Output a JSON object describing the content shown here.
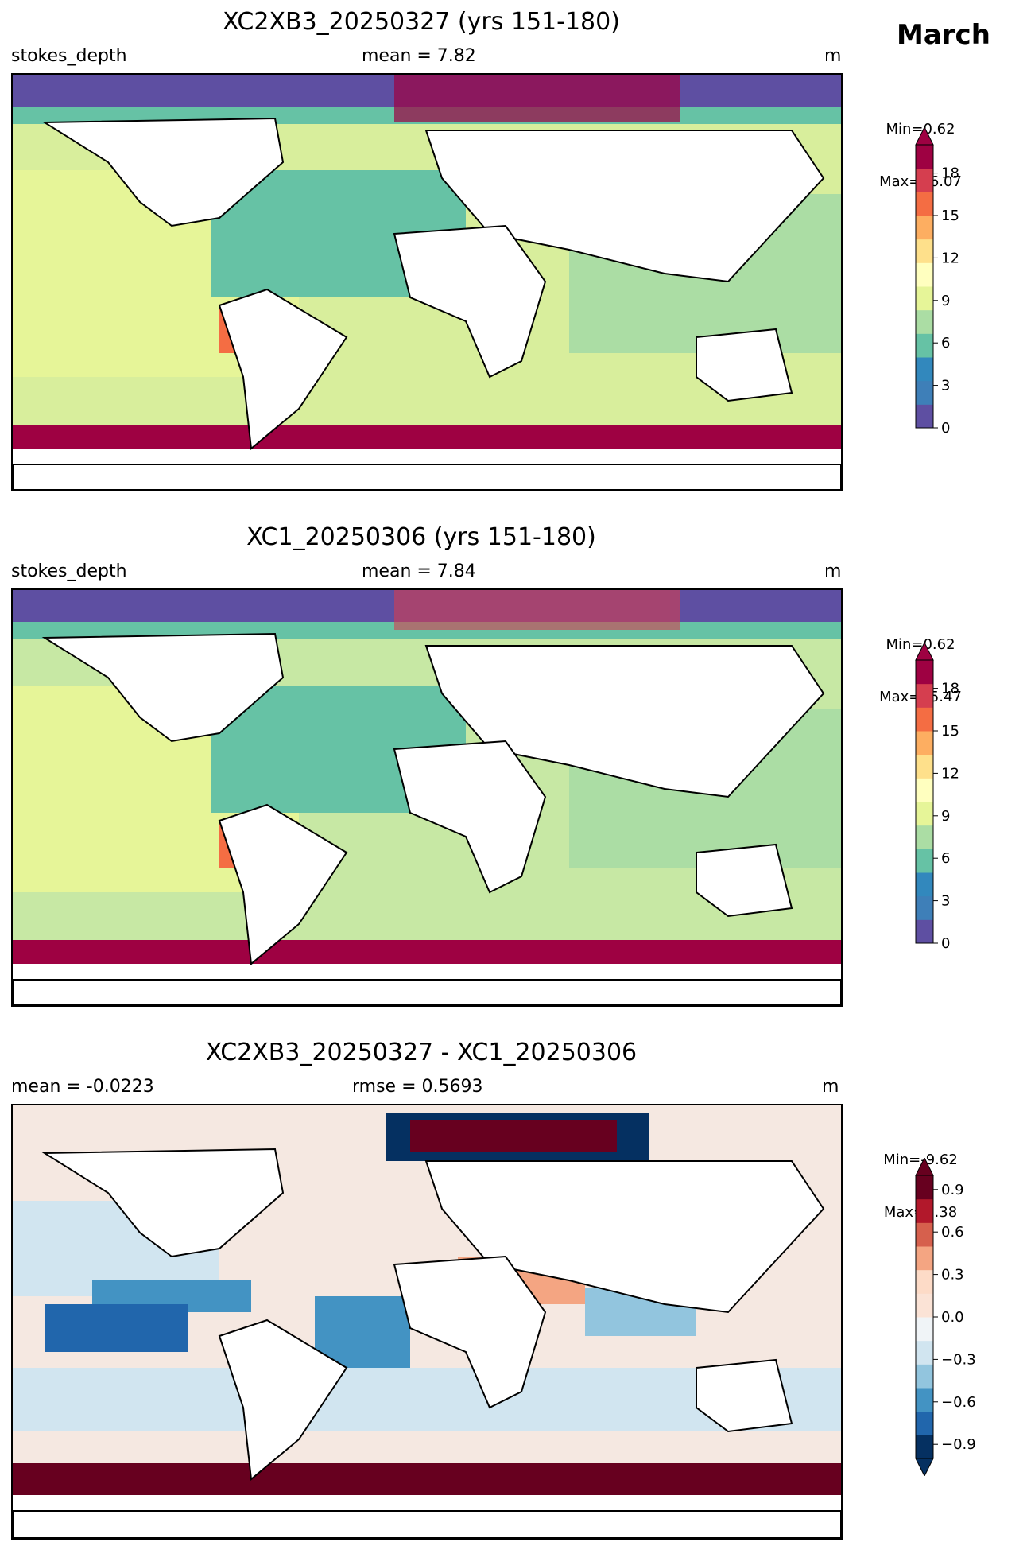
{
  "figure": {
    "month_label": "March"
  },
  "panels": [
    {
      "title": "XC2XB3_20250327 (yrs 151-180)",
      "left_label": "stokes_depth",
      "center_label": "mean = 7.82",
      "right_label": "m",
      "colorbar": {
        "min_label": "Min=0.62",
        "max_label": "Max=36.07",
        "ticks": [
          "0",
          "3",
          "6",
          "9",
          "12",
          "15",
          "18"
        ],
        "range": [
          0,
          20
        ],
        "extend": "max",
        "colors": [
          "#5e4fa2",
          "#3e7fb8",
          "#3288bd",
          "#66c2a5",
          "#abdda4",
          "#e6f598",
          "#ffffbf",
          "#fee08b",
          "#fdae61",
          "#f46d43",
          "#d53e4f",
          "#9e0142"
        ]
      }
    },
    {
      "title": "XC1_20250306 (yrs 151-180)",
      "left_label": "stokes_depth",
      "center_label": "mean = 7.84",
      "right_label": "m",
      "colorbar": {
        "min_label": "Min=0.62",
        "max_label": "Max=35.47",
        "ticks": [
          "0",
          "3",
          "6",
          "9",
          "12",
          "15",
          "18"
        ],
        "range": [
          0,
          20
        ],
        "extend": "max",
        "colors": [
          "#5e4fa2",
          "#3e7fb8",
          "#3288bd",
          "#66c2a5",
          "#abdda4",
          "#e6f598",
          "#ffffbf",
          "#fee08b",
          "#fdae61",
          "#f46d43",
          "#d53e4f",
          "#9e0142"
        ]
      }
    },
    {
      "title": "XC2XB3_20250327 - XC1_20250306",
      "left_label": "mean = -0.0223",
      "center_label": "rmse = 0.5693",
      "right_label": "m",
      "colorbar": {
        "min_label": "Min=-9.62",
        "max_label": "Max=7.38",
        "ticks": [
          "−0.9",
          "−0.6",
          "−0.3",
          "0.0",
          "0.3",
          "0.6",
          "0.9"
        ],
        "range": [
          -1.0,
          1.0
        ],
        "extend": "both",
        "colors": [
          "#053061",
          "#2166ac",
          "#4393c3",
          "#92c5de",
          "#d1e5f0",
          "#f0f4f7",
          "#fbe3d6",
          "#fddbc7",
          "#f4a582",
          "#d6604d",
          "#b2182b",
          "#67001f"
        ]
      }
    }
  ],
  "colors": {
    "sample_ocean_1": "#d8ee9c",
    "sample_ocean_2": "#c7e8a4",
    "diff_ocean": "#f5e8e1"
  }
}
